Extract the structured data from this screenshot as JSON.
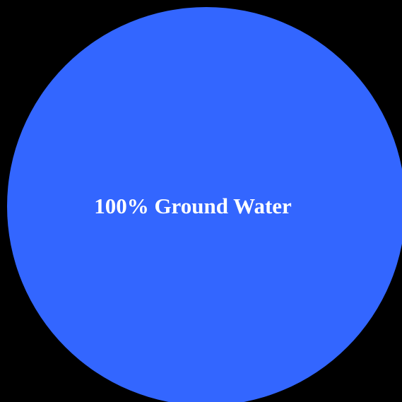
{
  "colors": {
    "background": "#000000",
    "label": "#ffffff"
  },
  "chart_data": {
    "type": "pie",
    "slices": [
      {
        "category": "Ground Water",
        "value": 100,
        "label": "100% Ground Water",
        "color": "#3366ff"
      }
    ]
  }
}
